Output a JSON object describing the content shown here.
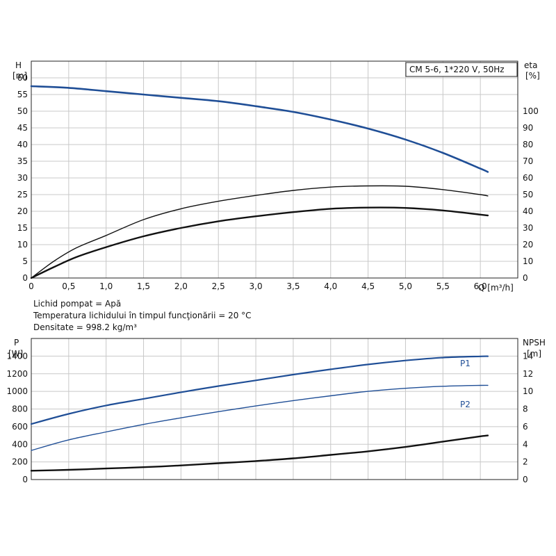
{
  "notes": {
    "fluid": "Lichid pompat = Apă",
    "temperature": "Temperatura lichidului în timpul funcţionării = 20 °C",
    "density": "Densitate = 998.2 kg/m³"
  },
  "chart_data": [
    {
      "type": "line",
      "legend_box": "CM 5-6, 1*220 V, 50Hz",
      "y_left_label": "H",
      "y_left_unit": "[m]",
      "y_right_label": "eta",
      "y_right_unit": "[%]",
      "x_label": "Q [m³/h]",
      "x_range": [
        0,
        6.5
      ],
      "x_ticks": [
        0,
        0.5,
        1.0,
        1.5,
        2.0,
        2.5,
        3.0,
        3.5,
        4.0,
        4.5,
        5.0,
        5.5,
        6.0
      ],
      "x_tick_labels": [
        "0",
        "0,5",
        "1,0",
        "1,5",
        "2,0",
        "2,5",
        "3,0",
        "3,5",
        "4,0",
        "4,5",
        "5,0",
        "5,5",
        "6,0"
      ],
      "y_left_range": [
        0,
        65
      ],
      "y_left_ticks": [
        0,
        5,
        10,
        15,
        20,
        25,
        30,
        35,
        40,
        45,
        50,
        55,
        60
      ],
      "y_right_range": [
        0,
        130
      ],
      "y_right_ticks": [
        0,
        10,
        20,
        30,
        40,
        50,
        60,
        70,
        80,
        90,
        100
      ],
      "grid": true,
      "series": [
        {
          "axis": "left",
          "color": "#1f4e96",
          "x": [
            0,
            0.5,
            1.0,
            1.5,
            2.0,
            2.5,
            3.0,
            3.5,
            4.0,
            4.5,
            5.0,
            5.5,
            6.0,
            6.1
          ],
          "y": [
            57.5,
            57.0,
            56.0,
            55.0,
            54.0,
            53.0,
            51.5,
            49.8,
            47.5,
            44.8,
            41.5,
            37.5,
            32.8,
            31.8
          ]
        },
        {
          "axis": "right",
          "color": "#111111",
          "x": [
            0,
            0.3,
            0.6,
            1.0,
            1.5,
            2.0,
            2.5,
            3.0,
            3.5,
            4.0,
            4.5,
            5.0,
            5.5,
            6.0,
            6.1
          ],
          "y": [
            0,
            10,
            18,
            25.5,
            35,
            41.5,
            46,
            49.5,
            52.5,
            54.5,
            55.2,
            55,
            53,
            50,
            49.2
          ]
        },
        {
          "axis": "right",
          "color": "#111111",
          "x": [
            0,
            0.3,
            0.6,
            1.0,
            1.5,
            2.0,
            2.5,
            3.0,
            3.5,
            4.0,
            4.5,
            5.0,
            5.5,
            6.0,
            6.1
          ],
          "y": [
            0,
            6.5,
            12.5,
            18.5,
            25,
            30,
            34,
            37,
            39.5,
            41.5,
            42.2,
            42,
            40.5,
            38,
            37.5
          ]
        }
      ]
    },
    {
      "type": "line",
      "y_left_label": "P",
      "y_left_unit": "[W]",
      "y_right_label": "NPSH",
      "y_right_unit": "[m]",
      "x_range": [
        0,
        6.5
      ],
      "x_ticks": [
        0,
        0.5,
        1.0,
        1.5,
        2.0,
        2.5,
        3.0,
        3.5,
        4.0,
        4.5,
        5.0,
        5.5,
        6.0
      ],
      "y_left_range": [
        0,
        1600
      ],
      "y_left_ticks": [
        0,
        200,
        400,
        600,
        800,
        1000,
        1200,
        1400
      ],
      "y_right_range": [
        0,
        16
      ],
      "y_right_ticks": [
        0,
        2,
        4,
        6,
        8,
        10,
        12,
        14
      ],
      "grid": true,
      "series": [
        {
          "name": "P1",
          "axis": "left",
          "color": "#1f4e96",
          "x": [
            0,
            0.5,
            1.0,
            1.5,
            2.0,
            2.5,
            3.0,
            3.5,
            4.0,
            4.5,
            5.0,
            5.5,
            6.0,
            6.1
          ],
          "y": [
            630,
            745,
            840,
            915,
            990,
            1060,
            1125,
            1190,
            1250,
            1305,
            1350,
            1383,
            1397,
            1398
          ]
        },
        {
          "name": "P2",
          "axis": "left",
          "color": "#1f4e96",
          "x": [
            0,
            0.5,
            1.0,
            1.5,
            2.0,
            2.5,
            3.0,
            3.5,
            4.0,
            4.5,
            5.0,
            5.5,
            6.0,
            6.1
          ],
          "y": [
            330,
            450,
            540,
            625,
            700,
            770,
            835,
            895,
            950,
            1000,
            1035,
            1058,
            1068,
            1068
          ]
        },
        {
          "axis": "right",
          "color": "#111111",
          "x": [
            0,
            0.5,
            1.0,
            1.5,
            2.0,
            2.5,
            3.0,
            3.5,
            4.0,
            4.5,
            5.0,
            5.5,
            6.0,
            6.1
          ],
          "y": [
            1.0,
            1.1,
            1.25,
            1.4,
            1.6,
            1.85,
            2.1,
            2.4,
            2.8,
            3.2,
            3.7,
            4.3,
            4.9,
            5.0
          ]
        }
      ]
    }
  ]
}
